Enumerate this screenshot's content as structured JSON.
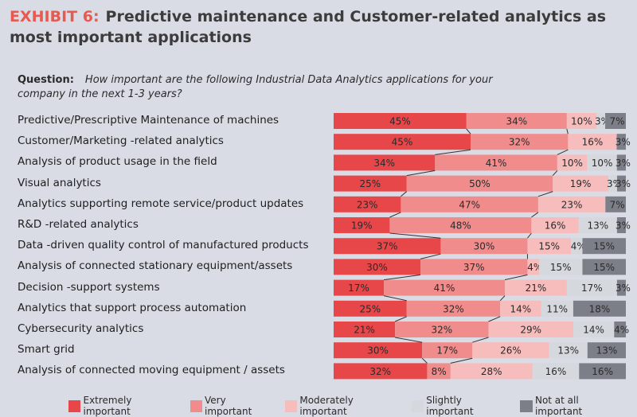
{
  "header": {
    "exhibit": "EXHIBIT 6:",
    "title": "Predictive maintenance and Customer-related analytics as most important applications"
  },
  "question": {
    "label": "Question:",
    "text": "How important are the following Industrial Data Analytics applications for your company in the next 1-3 years?"
  },
  "colors": [
    "#e8474a",
    "#f08c8c",
    "#f7bcbc",
    "#d5d8dd",
    "#7c7f88"
  ],
  "chart_data": {
    "type": "bar",
    "orientation": "horizontal",
    "stacked": true,
    "normalized": true,
    "categories": [
      "Predictive/Prescriptive Maintenance of machines",
      "Customer/Marketing  -related analytics",
      "Analysis of product usage in the field",
      "Visual analytics",
      "Analytics supporting remote service/product updates",
      "R&D -related analytics",
      "Data -driven quality control of manufactured products",
      "Analysis of connected stationary equipment/assets",
      "Decision -support systems",
      "Analytics that support process automation",
      "Cybersecurity analytics",
      "Smart grid",
      "Analysis of connected moving equipment / assets"
    ],
    "series": [
      {
        "name": "Extremely important",
        "values": [
          45,
          45,
          34,
          25,
          23,
          19,
          37,
          30,
          17,
          25,
          21,
          30,
          32
        ]
      },
      {
        "name": "Very important",
        "values": [
          34,
          32,
          41,
          50,
          47,
          48,
          30,
          37,
          41,
          32,
          32,
          17,
          8
        ]
      },
      {
        "name": "Moderately important",
        "values": [
          10,
          16,
          10,
          19,
          23,
          16,
          15,
          4,
          21,
          14,
          29,
          26,
          28
        ]
      },
      {
        "name": "Slightly important",
        "values": [
          3,
          null,
          10,
          3,
          null,
          13,
          4,
          15,
          17,
          11,
          14,
          13,
          16
        ]
      },
      {
        "name": "Not at all important",
        "values": [
          7,
          3,
          3,
          3,
          7,
          3,
          15,
          15,
          3,
          18,
          4,
          13,
          16
        ]
      }
    ],
    "legend_position": "bottom"
  }
}
